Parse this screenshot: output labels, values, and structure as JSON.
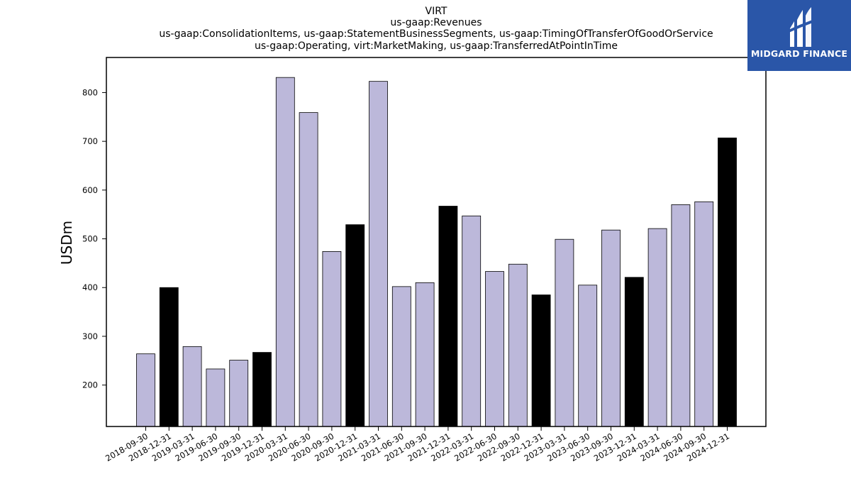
{
  "header": {
    "title_lines": [
      "VIRT",
      "us-gaap:Revenues",
      "us-gaap:ConsolidationItems, us-gaap:StatementBusinessSegments, us-gaap:TimingOfTransferOfGoodOrService",
      "us-gaap:Operating, virt:MarketMaking, us-gaap:TransferredAtPointInTime"
    ]
  },
  "logo": {
    "text": "MIDGARD FINANCE",
    "icon": "midgard-logo-icon",
    "background": "#2a56a8"
  },
  "chart_data": {
    "type": "bar",
    "title": "VIRT",
    "ylabel": "USDm",
    "xlabel": "",
    "ylim": [
      115,
      872
    ],
    "yticks": [
      200,
      300,
      400,
      500,
      600,
      700,
      800
    ],
    "grid": false,
    "colors": {
      "quarter": "#bcb8da",
      "year_end": "#000000",
      "edge": "#000000"
    },
    "categories": [
      "2018-09-30",
      "2018-12-31",
      "2019-03-31",
      "2019-06-30",
      "2019-09-30",
      "2019-12-31",
      "2020-03-31",
      "2020-06-30",
      "2020-09-30",
      "2020-12-31",
      "2021-03-31",
      "2021-06-30",
      "2021-09-30",
      "2021-12-31",
      "2022-03-31",
      "2022-06-30",
      "2022-09-30",
      "2022-12-31",
      "2023-03-31",
      "2023-06-30",
      "2023-09-30",
      "2023-12-31",
      "2024-03-31",
      "2024-06-30",
      "2024-09-30",
      "2024-12-31"
    ],
    "values": [
      264,
      400,
      279,
      233,
      251,
      267,
      831,
      759,
      474,
      529,
      823,
      402,
      410,
      567,
      547,
      433,
      448,
      385,
      499,
      405,
      518,
      421,
      521,
      570,
      576,
      707
    ],
    "year_end_flags": [
      false,
      true,
      false,
      false,
      false,
      true,
      false,
      false,
      false,
      true,
      false,
      false,
      false,
      true,
      false,
      false,
      false,
      true,
      false,
      false,
      false,
      true,
      false,
      false,
      false,
      true
    ]
  }
}
